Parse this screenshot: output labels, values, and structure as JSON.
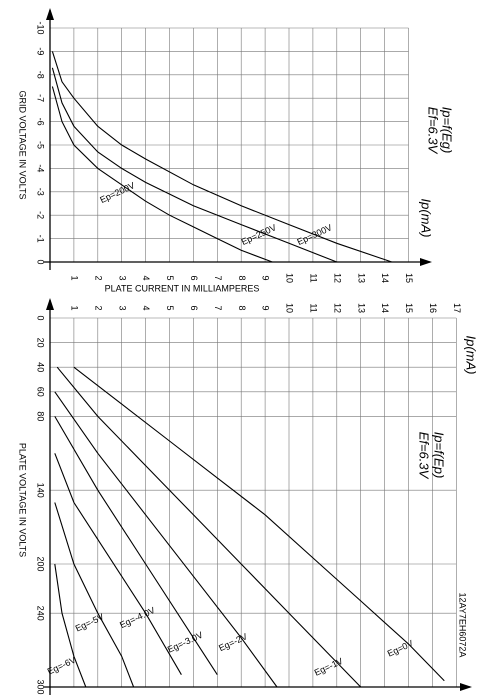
{
  "chart_data": [
    {
      "type": "line",
      "title": "Ip=f(Eg)",
      "subtitle": "Ef=6.3V",
      "x_label": "PLATE CURRENT IN MILLIAMPERES",
      "x_unit_label": "Ip(mA)",
      "y_label": "GRID VOLTAGE IN VOLTS",
      "xlim": [
        0,
        15
      ],
      "xticks": [
        1,
        2,
        3,
        4,
        5,
        6,
        7,
        8,
        9,
        10,
        11,
        12,
        13,
        14,
        15
      ],
      "ylim": [
        -10,
        0
      ],
      "yticks": [
        -10,
        -9,
        -8,
        -7,
        -6,
        -5,
        -4,
        -3,
        -2,
        -1,
        0
      ],
      "grid": true,
      "series": [
        {
          "name": "Ep=200V",
          "color": "#000000",
          "x": [
            0.1,
            0.5,
            1,
            2,
            3,
            4,
            5,
            6,
            7,
            8,
            9.3
          ],
          "values": [
            -7.5,
            -6,
            -5,
            -4,
            -3.3,
            -2.6,
            -2,
            -1.5,
            -1,
            -0.5,
            0
          ]
        },
        {
          "name": "Ep=250V",
          "color": "#000000",
          "x": [
            0.1,
            0.5,
            1,
            2,
            3,
            4,
            6,
            8,
            10,
            12
          ],
          "values": [
            -8.3,
            -6.8,
            -5.8,
            -4.7,
            -4,
            -3.4,
            -2.4,
            -1.6,
            -0.8,
            0
          ]
        },
        {
          "name": "Ep=300V",
          "color": "#000000",
          "x": [
            0.1,
            0.5,
            1,
            2,
            3,
            4,
            6,
            8,
            10,
            12,
            14.3
          ],
          "values": [
            -9,
            -7.7,
            -7,
            -5.8,
            -5,
            -4.4,
            -3.3,
            -2.4,
            -1.6,
            -0.8,
            0
          ]
        }
      ]
    },
    {
      "type": "line",
      "title": "Ip=f(Ep)",
      "subtitle": "Ef=6.3V",
      "x_unit_label": "Ip(mA)",
      "y_label": "PLATE VOLTAGE IN VOLTS",
      "note": "12AY7EH6072A",
      "xlim": [
        0,
        17
      ],
      "xticks": [
        1,
        2,
        3,
        4,
        5,
        6,
        7,
        8,
        9,
        10,
        11,
        12,
        13,
        14,
        15,
        16,
        17
      ],
      "ylim": [
        0,
        300
      ],
      "yticks": [
        0,
        20,
        40,
        60,
        80,
        140,
        200,
        240,
        300
      ],
      "grid": true,
      "series": [
        {
          "name": "Eg=0V",
          "color": "#000000",
          "x": [
            1,
            3,
            5,
            7,
            9,
            11,
            13,
            15,
            16.5
          ],
          "values": [
            40,
            70,
            100,
            130,
            160,
            195,
            230,
            265,
            295
          ]
        },
        {
          "name": "Eg=-1V",
          "color": "#000000",
          "x": [
            0.3,
            2,
            4,
            6,
            8,
            10,
            12,
            13
          ],
          "values": [
            40,
            80,
            120,
            160,
            200,
            240,
            280,
            300
          ]
        },
        {
          "name": "Eg=-2V",
          "color": "#000000",
          "x": [
            0.2,
            2,
            4,
            6,
            8,
            9.5
          ],
          "values": [
            60,
            110,
            160,
            210,
            260,
            300
          ]
        },
        {
          "name": "Eg=-3.0V",
          "color": "#000000",
          "x": [
            0.2,
            2,
            4,
            6,
            7
          ],
          "values": [
            80,
            140,
            200,
            260,
            290
          ]
        },
        {
          "name": "Eg=-4.0V",
          "color": "#000000",
          "x": [
            0.2,
            1,
            2,
            4,
            5.5
          ],
          "values": [
            110,
            150,
            180,
            240,
            290
          ]
        },
        {
          "name": "Eg=-5V",
          "color": "#000000",
          "x": [
            0.2,
            1,
            2,
            3,
            3.5
          ],
          "values": [
            150,
            200,
            240,
            275,
            300
          ]
        },
        {
          "name": "Eg=-6V",
          "color": "#000000",
          "x": [
            0.2,
            0.5,
            1,
            1.5
          ],
          "values": [
            200,
            240,
            275,
            300
          ]
        }
      ]
    }
  ]
}
